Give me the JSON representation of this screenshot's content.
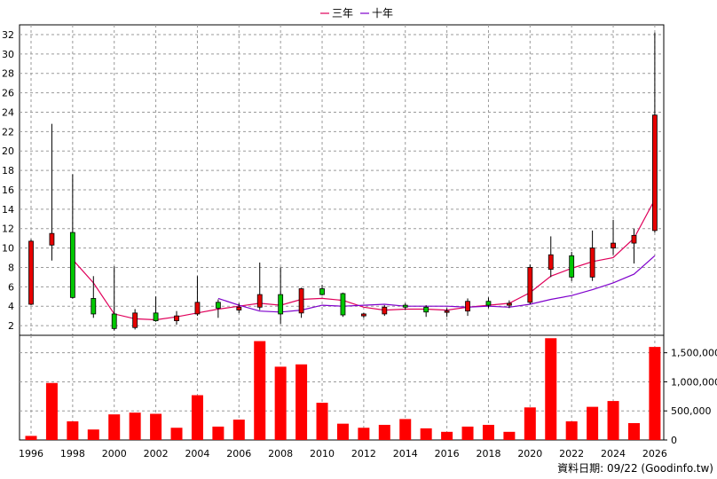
{
  "chart_data": {
    "type": "candlestick",
    "legend": {
      "placement": "top-center",
      "items": [
        {
          "label": "三年",
          "color": "#e0005a"
        },
        {
          "label": "十年",
          "color": "#7f00cc"
        }
      ]
    },
    "x_ticks": [
      "1996",
      "1998",
      "2000",
      "2002",
      "2004",
      "2006",
      "2008",
      "2010",
      "2012",
      "2014",
      "2016",
      "2018",
      "2020",
      "2022",
      "2024",
      "2026"
    ],
    "price_axis": {
      "ticks": [
        2,
        4,
        6,
        8,
        10,
        12,
        14,
        16,
        18,
        20,
        22,
        24,
        26,
        28,
        30,
        32
      ],
      "range": [
        1,
        33
      ]
    },
    "volume_axis": {
      "ticks": [
        0,
        500000,
        1000000,
        1500000
      ],
      "tick_labels": [
        "0",
        "500,000",
        "1,000,000",
        "1,500,000"
      ],
      "range": [
        0,
        1800000
      ]
    },
    "grid": true,
    "candles": [
      {
        "year": 1996,
        "open": 10.7,
        "close": 4.2,
        "high": 10.9,
        "low": 4.1,
        "color": "#e60000"
      },
      {
        "year": 1997,
        "open": 10.3,
        "close": 11.5,
        "high": 22.8,
        "low": 8.7,
        "color": "#e60000"
      },
      {
        "year": 1998,
        "open": 11.6,
        "close": 4.9,
        "high": 17.6,
        "low": 4.8,
        "color": "#00c800"
      },
      {
        "year": 1999,
        "open": 4.8,
        "close": 3.2,
        "high": 7.1,
        "low": 2.8,
        "color": "#00c800"
      },
      {
        "year": 2000,
        "open": 3.2,
        "close": 1.7,
        "high": 8.1,
        "low": 1.5,
        "color": "#00c800"
      },
      {
        "year": 2001,
        "open": 1.8,
        "close": 3.3,
        "high": 3.7,
        "low": 1.6,
        "color": "#e60000"
      },
      {
        "year": 2002,
        "open": 3.3,
        "close": 2.5,
        "high": 5.0,
        "low": 2.4,
        "color": "#00c800"
      },
      {
        "year": 2003,
        "open": 2.5,
        "close": 3.0,
        "high": 3.5,
        "low": 2.1,
        "color": "#e60000"
      },
      {
        "year": 2004,
        "open": 3.2,
        "close": 4.4,
        "high": 7.1,
        "low": 3.0,
        "color": "#e60000"
      },
      {
        "year": 2005,
        "open": 4.4,
        "close": 3.8,
        "high": 4.7,
        "low": 2.8,
        "color": "#00c800"
      },
      {
        "year": 2006,
        "open": 3.6,
        "close": 3.9,
        "high": 4.3,
        "low": 3.3,
        "color": "#e60000"
      },
      {
        "year": 2007,
        "open": 3.9,
        "close": 5.2,
        "high": 8.5,
        "low": 3.6,
        "color": "#e60000"
      },
      {
        "year": 2008,
        "open": 5.2,
        "close": 3.2,
        "high": 8.0,
        "low": 2.2,
        "color": "#00c800"
      },
      {
        "year": 2009,
        "open": 3.3,
        "close": 5.8,
        "high": 5.9,
        "low": 2.8,
        "color": "#e60000"
      },
      {
        "year": 2010,
        "open": 5.8,
        "close": 5.2,
        "high": 6.2,
        "low": 5.1,
        "color": "#00c800"
      },
      {
        "year": 2011,
        "open": 5.3,
        "close": 3.1,
        "high": 5.4,
        "low": 2.9,
        "color": "#00c800"
      },
      {
        "year": 2012,
        "open": 3.0,
        "close": 3.2,
        "high": 3.3,
        "low": 2.8,
        "color": "#e60000"
      },
      {
        "year": 2013,
        "open": 3.2,
        "close": 3.9,
        "high": 4.1,
        "low": 3.0,
        "color": "#e60000"
      },
      {
        "year": 2014,
        "open": 3.9,
        "close": 4.1,
        "high": 4.3,
        "low": 3.6,
        "color": "#00c800"
      },
      {
        "year": 2015,
        "open": 3.9,
        "close": 3.4,
        "high": 4.1,
        "low": 2.9,
        "color": "#00c800"
      },
      {
        "year": 2016,
        "open": 3.4,
        "close": 3.5,
        "high": 3.8,
        "low": 2.9,
        "color": "#e60000"
      },
      {
        "year": 2017,
        "open": 3.5,
        "close": 4.5,
        "high": 4.8,
        "low": 3.0,
        "color": "#e60000"
      },
      {
        "year": 2018,
        "open": 4.5,
        "close": 4.1,
        "high": 4.9,
        "low": 3.8,
        "color": "#00c800"
      },
      {
        "year": 2019,
        "open": 4.1,
        "close": 4.3,
        "high": 4.6,
        "low": 3.8,
        "color": "#e60000"
      },
      {
        "year": 2020,
        "open": 4.4,
        "close": 8.0,
        "high": 8.3,
        "low": 4.2,
        "color": "#e60000"
      },
      {
        "year": 2021,
        "open": 7.8,
        "close": 9.3,
        "high": 11.2,
        "low": 7.0,
        "color": "#e60000"
      },
      {
        "year": 2022,
        "open": 9.2,
        "close": 7.0,
        "high": 9.6,
        "low": 6.6,
        "color": "#00c800"
      },
      {
        "year": 2023,
        "open": 7.0,
        "close": 10.0,
        "high": 11.8,
        "low": 6.6,
        "color": "#e60000"
      },
      {
        "year": 2024,
        "open": 10.0,
        "close": 10.5,
        "high": 12.9,
        "low": 9.3,
        "color": "#e60000"
      },
      {
        "year": 2025,
        "open": 10.5,
        "close": 11.3,
        "high": 12.0,
        "low": 8.4,
        "color": "#e60000"
      },
      {
        "year": 2026,
        "open": 11.8,
        "close": 23.7,
        "high": 32.2,
        "low": 11.6,
        "color": "#e60000"
      }
    ],
    "moving_average_3y": {
      "name": "三年",
      "years": [
        1998,
        1999,
        2000,
        2001,
        2002,
        2003,
        2004,
        2005,
        2006,
        2007,
        2008,
        2009,
        2010,
        2011,
        2012,
        2013,
        2014,
        2015,
        2016,
        2017,
        2018,
        2019,
        2020,
        2021,
        2022,
        2023,
        2024,
        2025,
        2026
      ],
      "values": [
        8.8,
        6.4,
        3.2,
        2.7,
        2.6,
        2.9,
        3.3,
        3.7,
        4.0,
        4.3,
        4.1,
        4.7,
        4.8,
        4.6,
        3.9,
        3.6,
        3.7,
        3.7,
        3.6,
        3.9,
        4.1,
        4.3,
        5.4,
        7.1,
        7.9,
        8.6,
        9.0,
        11.0,
        15.0
      ]
    },
    "moving_average_10y": {
      "name": "十年",
      "years": [
        2005,
        2006,
        2007,
        2008,
        2009,
        2010,
        2011,
        2012,
        2013,
        2014,
        2015,
        2016,
        2017,
        2018,
        2019,
        2020,
        2021,
        2022,
        2023,
        2024,
        2025,
        2026
      ],
      "values": [
        4.8,
        4.1,
        3.5,
        3.4,
        3.6,
        4.1,
        4.0,
        4.1,
        4.2,
        4.0,
        4.0,
        4.0,
        3.9,
        4.0,
        3.9,
        4.2,
        4.7,
        5.1,
        5.7,
        6.4,
        7.3,
        9.2
      ]
    },
    "volume": {
      "years": [
        1996,
        1997,
        1998,
        1999,
        2000,
        2001,
        2002,
        2003,
        2004,
        2005,
        2006,
        2007,
        2008,
        2009,
        2010,
        2011,
        2012,
        2013,
        2014,
        2015,
        2016,
        2017,
        2018,
        2019,
        2020,
        2021,
        2022,
        2023,
        2024,
        2025,
        2026
      ],
      "values": [
        70000,
        980000,
        320000,
        180000,
        440000,
        470000,
        450000,
        210000,
        770000,
        230000,
        350000,
        1700000,
        1260000,
        1300000,
        640000,
        280000,
        210000,
        260000,
        360000,
        200000,
        140000,
        230000,
        260000,
        140000,
        560000,
        1750000,
        320000,
        570000,
        670000,
        290000,
        1600000
      ],
      "color": "#ff0000"
    }
  },
  "footer": {
    "source_text": "資料日期: 09/22 (Goodinfo.tw)"
  }
}
